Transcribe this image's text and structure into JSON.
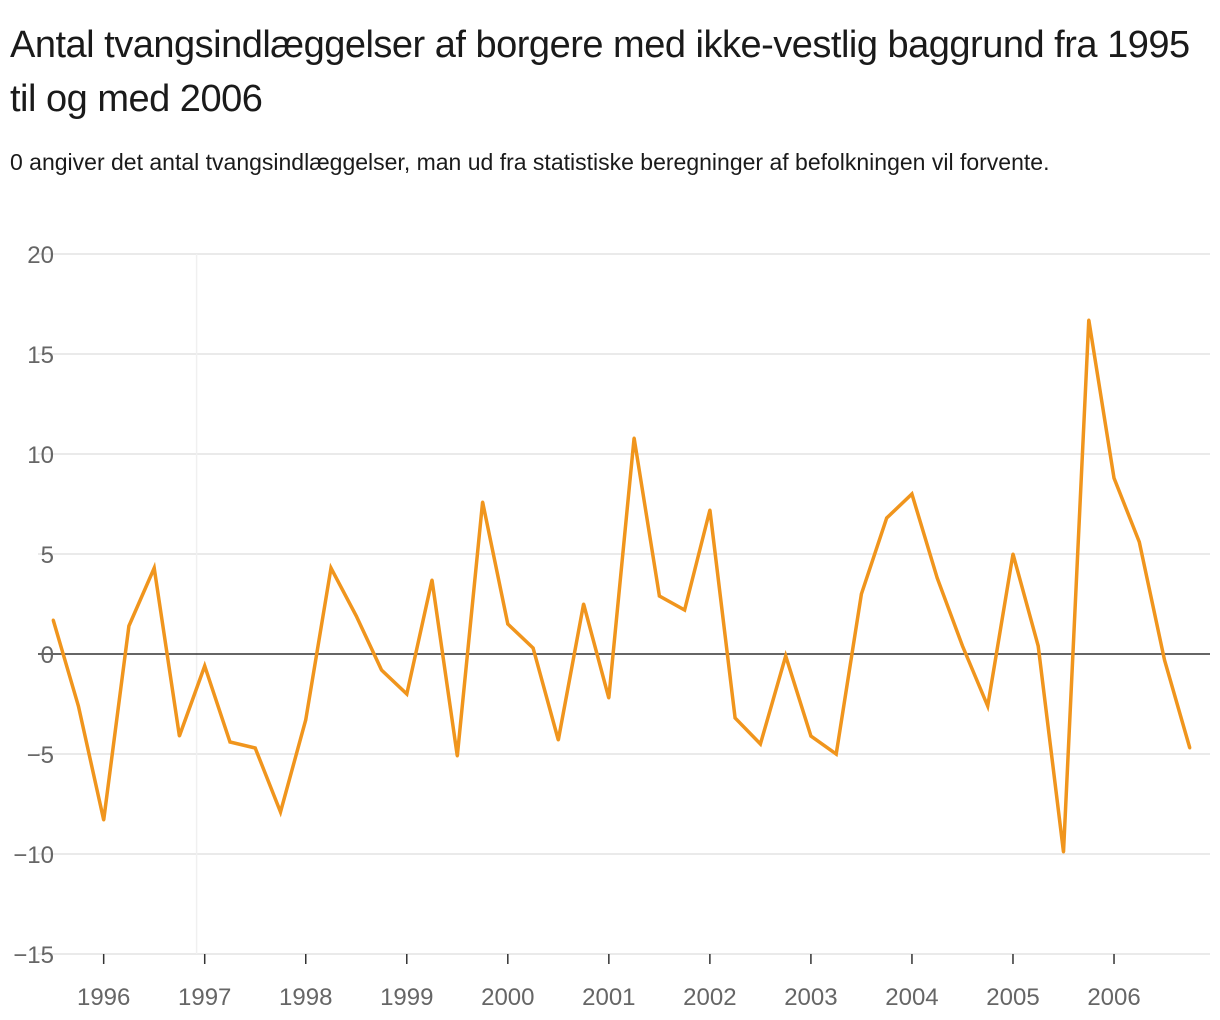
{
  "chart_data": {
    "type": "line",
    "title": "Antal tvangsindlæggelser af borgere med ikke-vestlig baggrund fra 1995 til og med 2006",
    "subtitle": "0 angiver det antal tvangsindlæggelser, man ud fra statistiske beregninger af befolkningen vil forvente.",
    "xlabel": "",
    "ylabel": "",
    "ylim": [
      -15,
      20
    ],
    "xlim": [
      1995.35,
      2006.95
    ],
    "grid": true,
    "yticks": [
      20,
      15,
      10,
      5,
      0,
      -5,
      -10,
      -15
    ],
    "ytick_labels": [
      "20",
      "15",
      "10",
      "5",
      "0",
      "−5",
      "−10",
      "−15"
    ],
    "xticks": [
      1996,
      1997,
      1998,
      1999,
      2000,
      2001,
      2002,
      2003,
      2004,
      2005,
      2006
    ],
    "xtick_labels": [
      "1996",
      "1997",
      "1998",
      "1999",
      "2000",
      "2001",
      "2002",
      "2003",
      "2004",
      "2005",
      "2006"
    ],
    "series": [
      {
        "name": "Tvangsindlæggelser",
        "color": "#f0951d",
        "x": [
          1995.5,
          1995.75,
          1996.0,
          1996.25,
          1996.5,
          1996.75,
          1997.0,
          1997.25,
          1997.5,
          1997.75,
          1998.0,
          1998.25,
          1998.5,
          1998.75,
          1999.0,
          1999.25,
          1999.5,
          1999.75,
          2000.0,
          2000.25,
          2000.5,
          2000.75,
          2001.0,
          2001.25,
          2001.5,
          2001.75,
          2002.0,
          2002.25,
          2002.5,
          2002.75,
          2003.0,
          2003.25,
          2003.5,
          2003.75,
          2004.0,
          2004.25,
          2004.5,
          2004.75,
          2005.0,
          2005.25,
          2005.5,
          2005.75,
          2006.0,
          2006.25,
          2006.5,
          2006.75
        ],
        "values": [
          1.7,
          -2.6,
          -8.3,
          1.4,
          4.3,
          -4.1,
          -0.6,
          -4.4,
          -4.7,
          -7.9,
          -3.3,
          4.3,
          1.9,
          -0.8,
          -2.0,
          3.7,
          -5.1,
          7.6,
          1.5,
          0.3,
          -4.3,
          2.5,
          -2.2,
          10.8,
          2.9,
          2.2,
          7.2,
          -3.2,
          -4.5,
          -0.1,
          -4.1,
          -5.0,
          3.0,
          6.8,
          8.0,
          3.8,
          0.4,
          -2.6,
          5.0,
          0.4,
          -9.9,
          16.7,
          8.8,
          5.6,
          -0.3,
          -4.7
        ]
      }
    ]
  }
}
